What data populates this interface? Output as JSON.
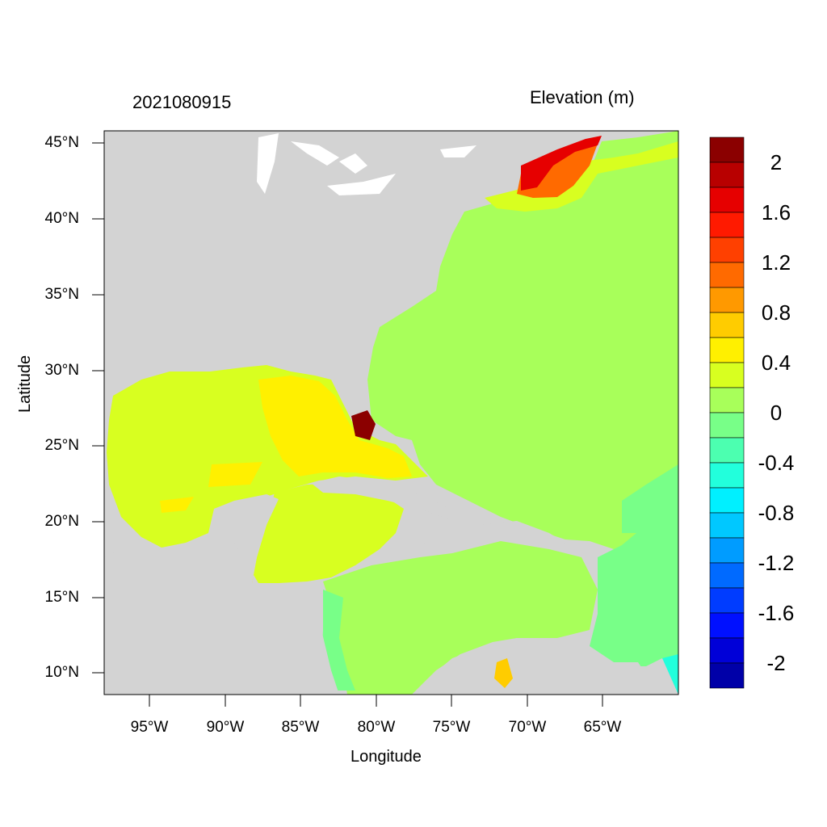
{
  "header": {
    "timestamp": "2021080915",
    "variable": "Elevation (m)"
  },
  "axes": {
    "xlabel": "Longitude",
    "ylabel": "Latitude",
    "xticks": [
      "95°W",
      "90°W",
      "85°W",
      "80°W",
      "75°W",
      "70°W",
      "65°W"
    ],
    "yticks": [
      "45°N",
      "40°N",
      "35°N",
      "30°N",
      "25°N",
      "20°N",
      "15°N",
      "10°N"
    ]
  },
  "colorbar": {
    "labels": [
      "2",
      "1.6",
      "1.2",
      "0.8",
      "0.4",
      "0",
      "-0.4",
      "-0.8",
      "-1.2",
      "-1.6",
      "-2"
    ],
    "colors": [
      "#8b0000",
      "#b80000",
      "#e60000",
      "#ff1a00",
      "#ff4000",
      "#ff6a00",
      "#ff9900",
      "#ffcc00",
      "#fff000",
      "#d8ff20",
      "#a8ff5a",
      "#78ff88",
      "#4cffb0",
      "#22ffdc",
      "#00f0ff",
      "#00c8ff",
      "#009cff",
      "#006aff",
      "#003cff",
      "#0010ff",
      "#0000d8",
      "#0000a8"
    ]
  },
  "map": {
    "land_color": "#d3d3d3",
    "water_color": "#ffffff",
    "ocean_base_color": "#a8ff5a"
  }
}
